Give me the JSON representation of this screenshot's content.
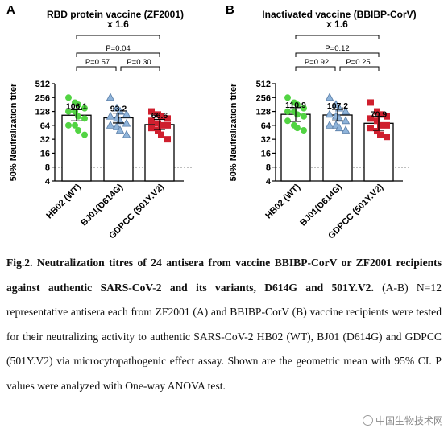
{
  "chart_data": [
    {
      "type": "bar",
      "panel_letter": "A",
      "title": "RBD protein vaccine (ZF2001)",
      "ylabel": "50% Neutralization titer",
      "ylim": [
        4,
        512
      ],
      "yscale": "log2",
      "yticks": [
        "4",
        "8",
        "16",
        "32",
        "64",
        "128",
        "256",
        "512"
      ],
      "threshold": 8,
      "categories": [
        "HB02 (WT)",
        "BJ01(D614G)",
        "GDPCC (501Y.V2)"
      ],
      "values": [
        106.1,
        93.2,
        66.6
      ],
      "value_labels": [
        "106.1",
        "93.2",
        "66.6"
      ],
      "ci_low": [
        80,
        72,
        52
      ],
      "ci_high": [
        140,
        118,
        86
      ],
      "points": [
        [
          256,
          200,
          180,
          150,
          128,
          128,
          100,
          90,
          64,
          64,
          50,
          40
        ],
        [
          256,
          150,
          128,
          110,
          100,
          90,
          80,
          70,
          64,
          60,
          50,
          40
        ],
        [
          128,
          110,
          100,
          90,
          80,
          70,
          64,
          64,
          56,
          50,
          40,
          32
        ]
      ],
      "markers": [
        "circle",
        "triangle",
        "square"
      ],
      "colors": [
        "#52d443",
        "#8fb4da",
        "#cf1f2e"
      ],
      "brackets": [
        {
          "from": 0,
          "to": 2,
          "label": "x 1.6"
        },
        {
          "from": 0,
          "to": 2,
          "label": "P=0.04"
        },
        {
          "from": 0,
          "to": 1,
          "label": "P=0.57"
        },
        {
          "from": 1,
          "to": 2,
          "label": "P=0.30"
        }
      ]
    },
    {
      "type": "bar",
      "panel_letter": "B",
      "title": "Inactivated vaccine (BBIBP-CorV)",
      "ylabel": "50% Neutralization titer",
      "ylim": [
        4,
        512
      ],
      "yscale": "log2",
      "yticks": [
        "4",
        "8",
        "16",
        "32",
        "64",
        "128",
        "256",
        "512"
      ],
      "threshold": 8,
      "categories": [
        "HB02 (WT)",
        "BJ01(D614G)",
        "GDPCC (501Y.V2)"
      ],
      "values": [
        110.9,
        107.2,
        70.9
      ],
      "value_labels": [
        "110.9",
        "107.2",
        "70.9"
      ],
      "ci_low": [
        78,
        80,
        50
      ],
      "ci_high": [
        155,
        142,
        100
      ],
      "points": [
        [
          256,
          200,
          180,
          150,
          128,
          128,
          110,
          100,
          80,
          64,
          56,
          50
        ],
        [
          256,
          180,
          150,
          128,
          110,
          100,
          90,
          80,
          64,
          64,
          56,
          50
        ],
        [
          200,
          128,
          110,
          100,
          90,
          80,
          64,
          64,
          56,
          48,
          40,
          36
        ]
      ],
      "markers": [
        "circle",
        "triangle",
        "square"
      ],
      "colors": [
        "#52d443",
        "#8fb4da",
        "#cf1f2e"
      ],
      "brackets": [
        {
          "from": 0,
          "to": 2,
          "label": "x 1.6"
        },
        {
          "from": 0,
          "to": 2,
          "label": "P=0.12"
        },
        {
          "from": 0,
          "to": 1,
          "label": "P=0.92"
        },
        {
          "from": 1,
          "to": 2,
          "label": "P=0.25"
        }
      ]
    }
  ],
  "caption": {
    "lead": "Fig.2. Neutralization titres of 24 antisera from vaccine BBIBP-CorV or ZF2001 recipients against authentic SARS-CoV-2 and its variants, D614G and 501Y.V2.",
    "body": " (A-B) N=12 representative antisera each from ZF2001 (A) and BBIBP-CorV (B) vaccine recipients were tested for their neutralizing activity to authentic SARS-CoV-2 HB02 (WT), BJ01 (D614G) and GDPCC (501Y.V2) via microcytopathogenic effect assay. Shown are the geometric mean with 95% CI. P values were analyzed with One-way ANOVA test."
  },
  "watermark": {
    "text": "中国生物技术网"
  }
}
